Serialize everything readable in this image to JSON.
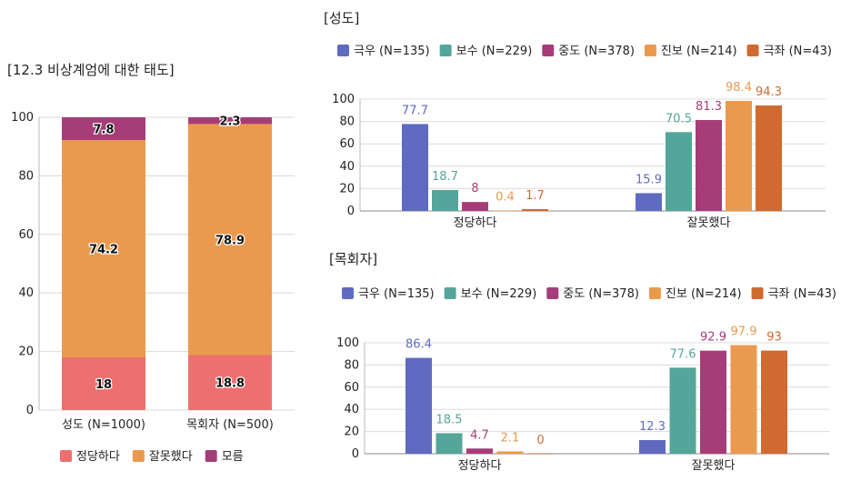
{
  "chart_data": [
    {
      "type": "bar",
      "stacked": true,
      "title": "[12.3 비상계엄에 대한 태도]",
      "categories": [
        "성도 (N=1000)",
        "목회자 (N=500)"
      ],
      "series": [
        {
          "name": "정당하다",
          "color": "#ee6f6f",
          "values": [
            18,
            18.8
          ]
        },
        {
          "name": "잘못했다",
          "color": "#ea9a4e",
          "values": [
            74.2,
            78.9
          ]
        },
        {
          "name": "모름",
          "color": "#a63d78",
          "values": [
            7.8,
            2.3
          ]
        }
      ],
      "ylim": [
        0,
        100
      ],
      "yticks": [
        "0",
        "20",
        "40",
        "60",
        "80",
        "100"
      ],
      "grid": true,
      "legend": "bottom"
    },
    {
      "type": "bar",
      "title": "[성도]",
      "categories": [
        "정당하다",
        "잘못했다"
      ],
      "series": [
        {
          "name": "극우 (N=135)",
          "color": "#5f6bc0",
          "values": [
            77.7,
            15.9
          ]
        },
        {
          "name": "보수 (N=229)",
          "color": "#54a59a",
          "values": [
            18.7,
            70.5
          ]
        },
        {
          "name": "중도 (N=378)",
          "color": "#a63d78",
          "values": [
            8,
            81.3
          ]
        },
        {
          "name": "진보 (N=214)",
          "color": "#ea9a4e",
          "values": [
            0.4,
            98.4
          ]
        },
        {
          "name": "극좌 (N=43)",
          "color": "#d16a30",
          "values": [
            1.7,
            94.3
          ]
        }
      ],
      "ylim": [
        0,
        100
      ],
      "yticks": [
        "0",
        "20",
        "40",
        "60",
        "80",
        "100"
      ],
      "grid": true,
      "legend": "top"
    },
    {
      "type": "bar",
      "title": "[목회자]",
      "categories": [
        "정당하다",
        "잘못했다"
      ],
      "series": [
        {
          "name": "극우 (N=135)",
          "color": "#5f6bc0",
          "values": [
            86.4,
            12.3
          ]
        },
        {
          "name": "보수 (N=229)",
          "color": "#54a59a",
          "values": [
            18.5,
            77.6
          ]
        },
        {
          "name": "중도 (N=378)",
          "color": "#a63d78",
          "values": [
            4.7,
            92.9
          ]
        },
        {
          "name": "진보 (N=214)",
          "color": "#ea9a4e",
          "values": [
            2.1,
            97.9
          ]
        },
        {
          "name": "극좌 (N=43)",
          "color": "#d16a30",
          "values": [
            0,
            93
          ]
        }
      ],
      "ylim": [
        0,
        100
      ],
      "yticks": [
        "0",
        "20",
        "40",
        "60",
        "80",
        "100"
      ],
      "grid": true,
      "legend": "top"
    }
  ]
}
